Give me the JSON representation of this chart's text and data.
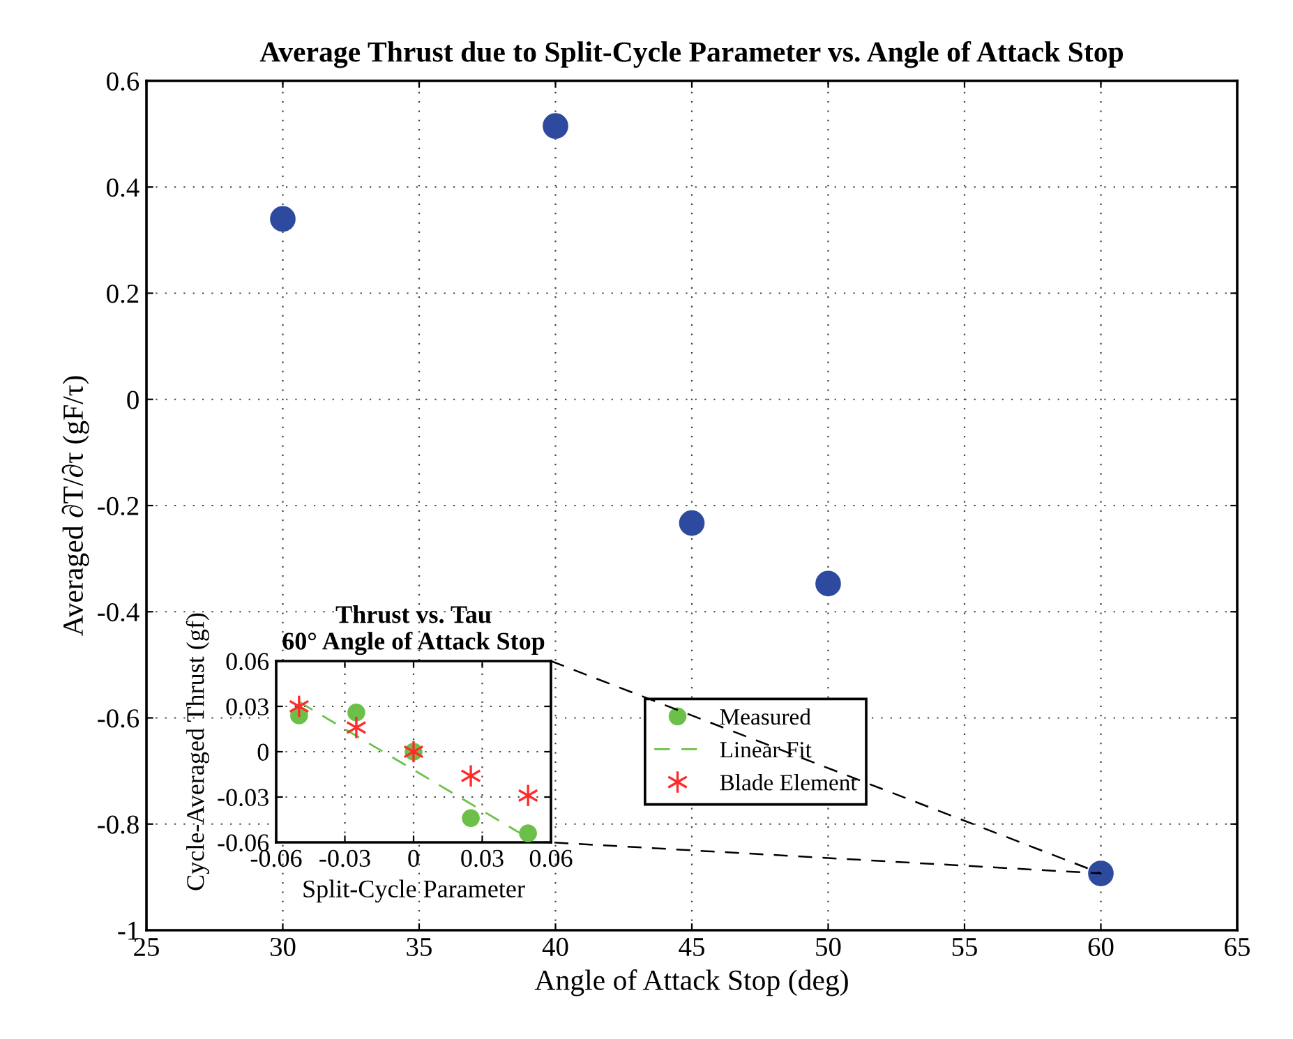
{
  "chart_data": [
    {
      "type": "scatter",
      "title": "Average Thrust due to Split-Cycle Parameter vs. Angle of Attack Stop",
      "xlabel": "Angle of Attack Stop (deg)",
      "ylabel": "Averaged ∂T/∂τ (gF/τ)",
      "x": [
        30,
        40,
        45,
        50,
        60
      ],
      "series": [
        {
          "color": "#2e4a9e",
          "values": [
            0.34,
            0.515,
            -0.233,
            -0.347,
            -0.893
          ]
        }
      ],
      "xlim": [
        25,
        65
      ],
      "ylim": [
        -1,
        0.6
      ],
      "xticks": [
        25,
        30,
        35,
        40,
        45,
        50,
        55,
        60,
        65
      ],
      "yticks": [
        -1,
        -0.8,
        -0.6,
        -0.4,
        -0.2,
        0,
        0.2,
        0.4,
        0.6
      ],
      "grid": true,
      "marker": "circle",
      "legend": false
    },
    {
      "type": "scatter",
      "title": "Thrust vs. Tau\n60° Angle of Attack Stop",
      "xlabel": "Split-Cycle Parameter",
      "ylabel": "Cycle-Averaged Thrust (gf)",
      "xlim": [
        -0.06,
        0.06
      ],
      "ylim": [
        -0.06,
        0.06
      ],
      "xticks": [
        -0.06,
        -0.03,
        0,
        0.03,
        0.06
      ],
      "yticks": [
        -0.06,
        -0.03,
        0,
        0.03,
        0.06
      ],
      "grid": true,
      "legend": "right",
      "series": [
        {
          "name": "Measured",
          "type": "scatter",
          "marker": "circle",
          "color": "#6cc04a",
          "x": [
            -0.05,
            -0.025,
            0,
            0.025,
            0.05
          ],
          "values": [
            0.024,
            0.026,
            0,
            -0.044,
            -0.054
          ]
        },
        {
          "name": "Linear Fit",
          "type": "line",
          "marker": "none",
          "line_style": "dashed",
          "color": "#6cc04a",
          "x": [
            -0.05,
            0.05
          ],
          "values": [
            0.033,
            -0.057
          ]
        },
        {
          "name": "Blade Element",
          "type": "scatter",
          "marker": "cross",
          "color": "#ff2a2a",
          "x": [
            -0.05,
            -0.025,
            0,
            0.025,
            0.05
          ],
          "values": [
            0.03,
            0.016,
            0,
            -0.016,
            -0.029
          ]
        }
      ]
    }
  ]
}
